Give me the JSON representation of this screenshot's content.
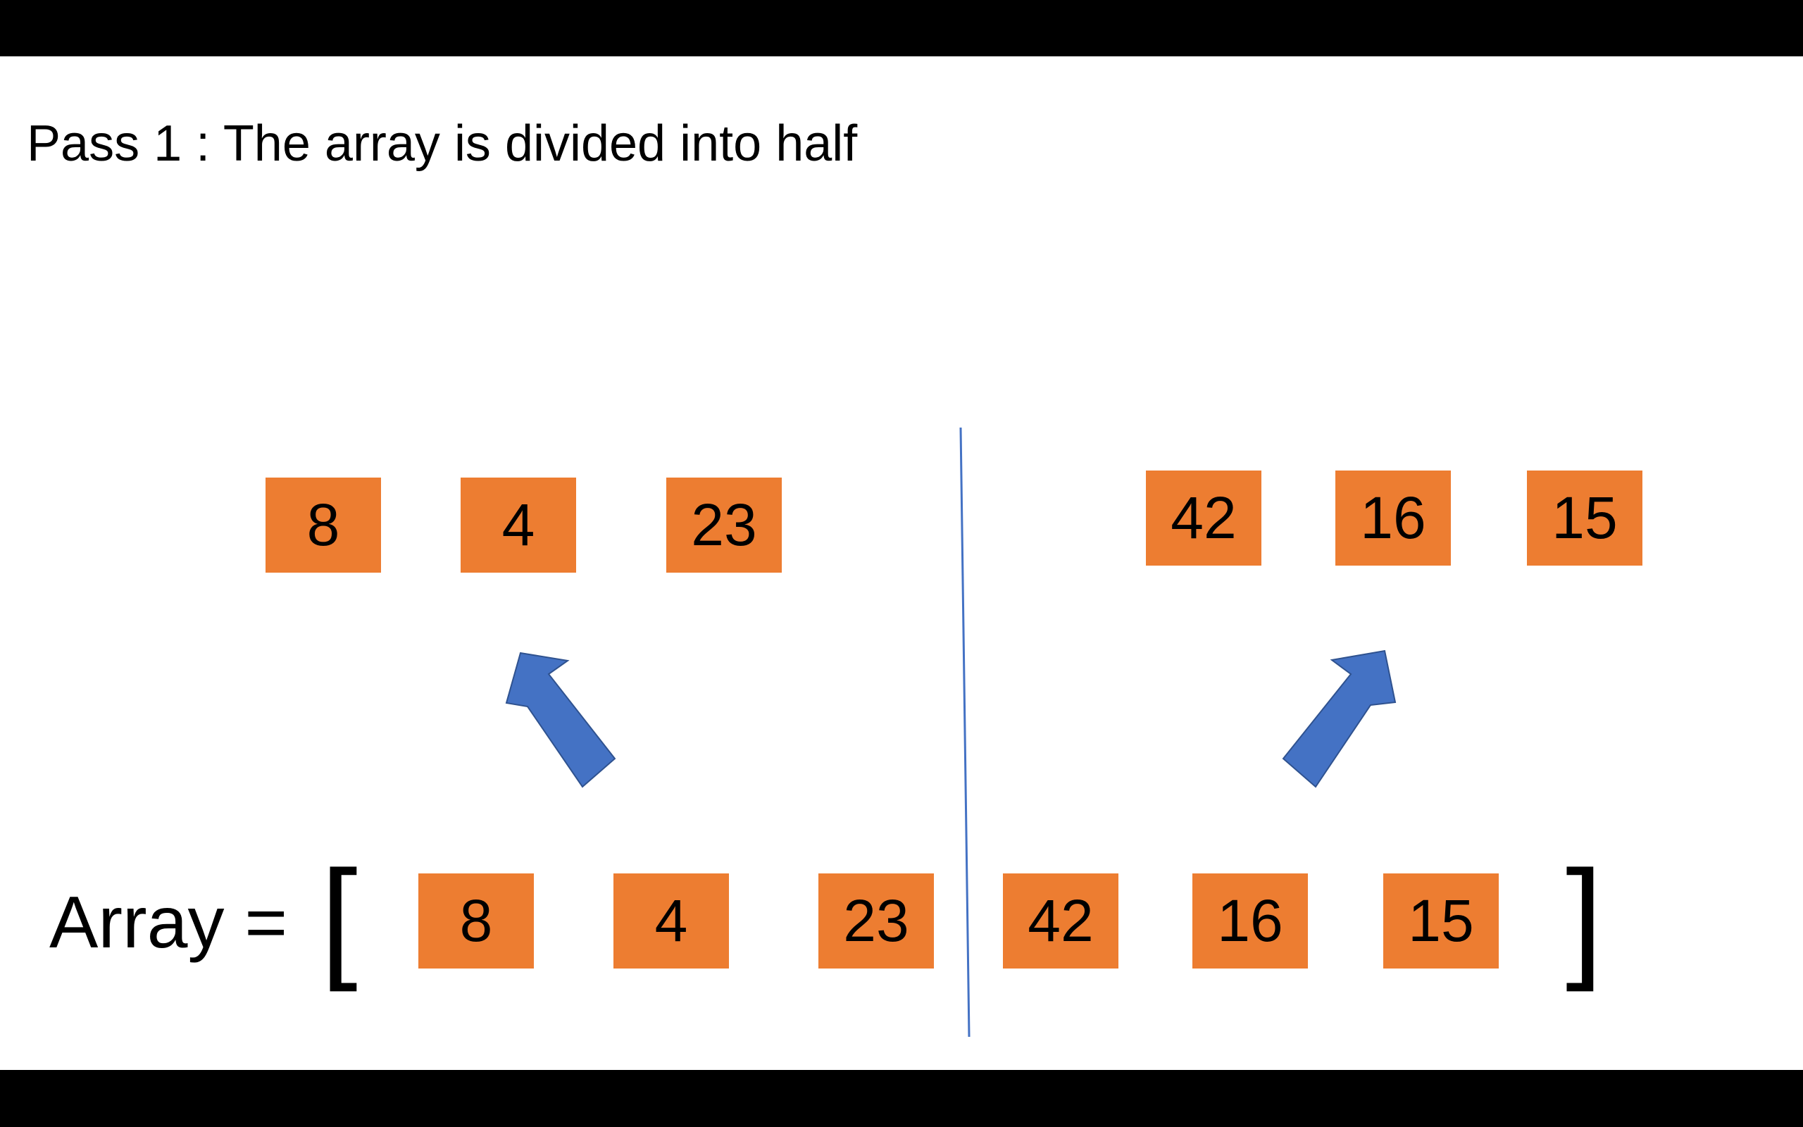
{
  "title": "Pass 1 : The array is divided into half",
  "array_label": "Array =",
  "brackets": {
    "open": "[",
    "close": "]"
  },
  "colors": {
    "box": "#ED7D31",
    "arrow": "#4472C4",
    "arrow_stroke": "#2F528F",
    "divider": "#4472C4"
  },
  "left_half": [
    "8",
    "4",
    "23"
  ],
  "right_half": [
    "42",
    "16",
    "15"
  ],
  "array": [
    "8",
    "4",
    "23",
    "42",
    "16",
    "15"
  ],
  "arrows": [
    {
      "name": "left-half-arrow",
      "direction": "up-left"
    },
    {
      "name": "right-half-arrow",
      "direction": "up-right"
    }
  ]
}
